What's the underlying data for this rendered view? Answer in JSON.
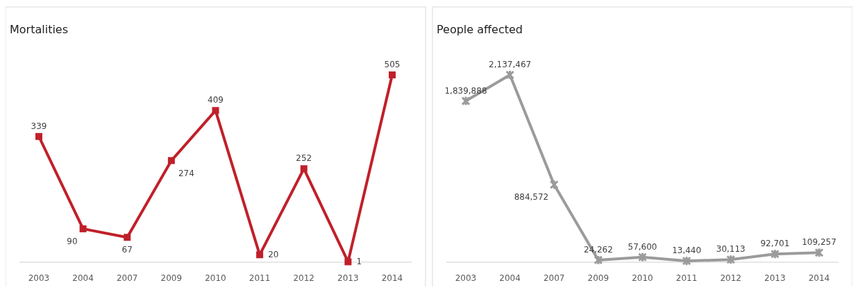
{
  "chart_data": [
    {
      "type": "line",
      "title": "Mortalities",
      "categories": [
        "2003",
        "2004",
        "2007",
        "2009",
        "2010",
        "2011",
        "2012",
        "2013",
        "2014"
      ],
      "series": [
        {
          "color": "#c0202a",
          "values": [
            339,
            90,
            67,
            274,
            409,
            20,
            252,
            1,
            505
          ]
        }
      ],
      "data_labels": true,
      "marker": "square",
      "relative": false
    },
    {
      "type": "line",
      "title": "People affected",
      "categories": [
        "2003",
        "2004",
        "2007",
        "2009",
        "2010",
        "2011",
        "2012",
        "2013",
        "2014"
      ],
      "series": [
        {
          "color": "#9b9b9b",
          "values": [
            1839888,
            2137467,
            884572,
            24262,
            57600,
            13440,
            30113,
            92701,
            109257
          ],
          "value_labels": [
            "1,839,888",
            "2,137,467",
            "884,572",
            "24,262",
            "57,600",
            "13,440",
            "30,113",
            "92,701",
            "109,257"
          ]
        }
      ],
      "marker": "cross",
      "relative": false
    }
  ]
}
